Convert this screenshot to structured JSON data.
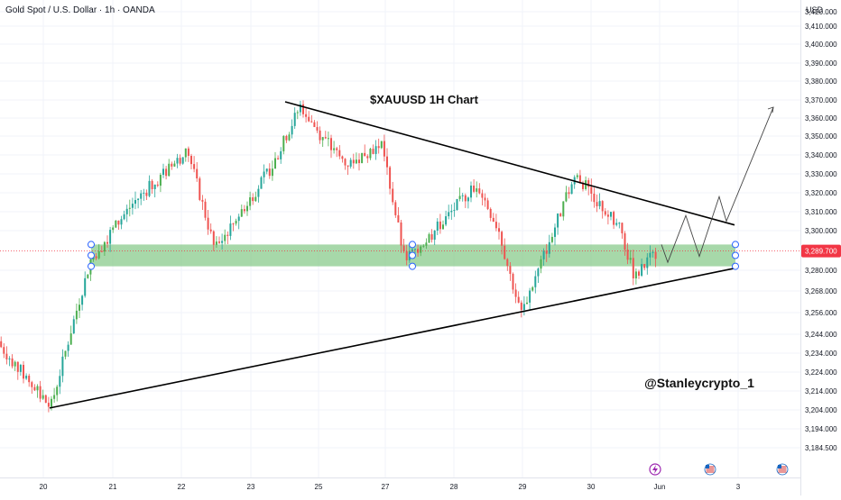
{
  "header": {
    "symbol_title": "Gold Spot / U.S. Dollar · 1h · OANDA",
    "currency": "USD"
  },
  "colors": {
    "up_candle": "#26a69a",
    "up_candle_alt": "#4caf50",
    "down_candle": "#ef5350",
    "zone_fill": "#81c784",
    "trendline": "#000000",
    "price_line": "#f23645",
    "handle_stroke": "#2962ff",
    "event_purple": "#9c27b0",
    "flag_red": "#d32f2f",
    "flag_blue": "#1565c0"
  },
  "chart_data": {
    "type": "candlestick",
    "title": "$XAUUSD 1H Chart",
    "annotation": "@Stanleycrypto_1",
    "last_price": "3,289.700",
    "ylim": [
      3180,
      3430
    ],
    "y_ticks": [
      "3,420.000",
      "3,410.000",
      "3,400.000",
      "3,390.000",
      "3,380.000",
      "3,370.000",
      "3,360.000",
      "3,350.000",
      "3,340.000",
      "3,330.000",
      "3,320.000",
      "3,310.000",
      "3,300.000",
      "3,289.700",
      "3,280.000",
      "3,268.000",
      "3,256.000",
      "3,244.000",
      "3,234.000",
      "3,224.000",
      "3,214.000",
      "3,204.000",
      "3,194.000",
      "3,184.500"
    ],
    "x_ticks": [
      "20",
      "21",
      "22",
      "23",
      "25",
      "27",
      "28",
      "29",
      "30",
      "Jun",
      "3"
    ],
    "support_zone": [
      3282,
      3293
    ],
    "upper_trendline": {
      "from": [
        "24",
        3369
      ],
      "to": [
        "Jun 1",
        3303
      ]
    },
    "lower_trendline": {
      "from": [
        "20",
        3205
      ],
      "to": [
        "Jun 1",
        3281
      ]
    },
    "projection_path": [
      {
        "x": "May 30",
        "y": 3293
      },
      {
        "x": "May 30",
        "y": 3284
      },
      {
        "x": "May 31",
        "y": 3308
      },
      {
        "x": "May 31",
        "y": 3287
      },
      {
        "x": "Jun 1",
        "y": 3318
      },
      {
        "x": "Jun 1",
        "y": 3305
      },
      {
        "x": "Jun 2",
        "y": 3366
      }
    ],
    "key_points": [
      {
        "x": "May 19",
        "y": 3245
      },
      {
        "x": "May 20",
        "y": 3205
      },
      {
        "x": "May 20",
        "y": 3285
      },
      {
        "x": "May 21",
        "y": 3315
      },
      {
        "x": "May 22",
        "y": 3342
      },
      {
        "x": "May 22",
        "y": 3290
      },
      {
        "x": "May 23",
        "y": 3335
      },
      {
        "x": "May 24",
        "y": 3367
      },
      {
        "x": "May 25",
        "y": 3350
      },
      {
        "x": "May 26",
        "y": 3335
      },
      {
        "x": "May 27",
        "y": 3346
      },
      {
        "x": "May 27",
        "y": 3285
      },
      {
        "x": "May 28",
        "y": 3298
      },
      {
        "x": "May 28",
        "y": 3325
      },
      {
        "x": "May 29",
        "y": 3300
      },
      {
        "x": "May 29",
        "y": 3255
      },
      {
        "x": "May 29",
        "y": 3288
      },
      {
        "x": "May 30",
        "y": 3330
      },
      {
        "x": "May 30",
        "y": 3300
      },
      {
        "x": "May 30",
        "y": 3276
      },
      {
        "x": "May 31",
        "y": 3290
      }
    ]
  }
}
